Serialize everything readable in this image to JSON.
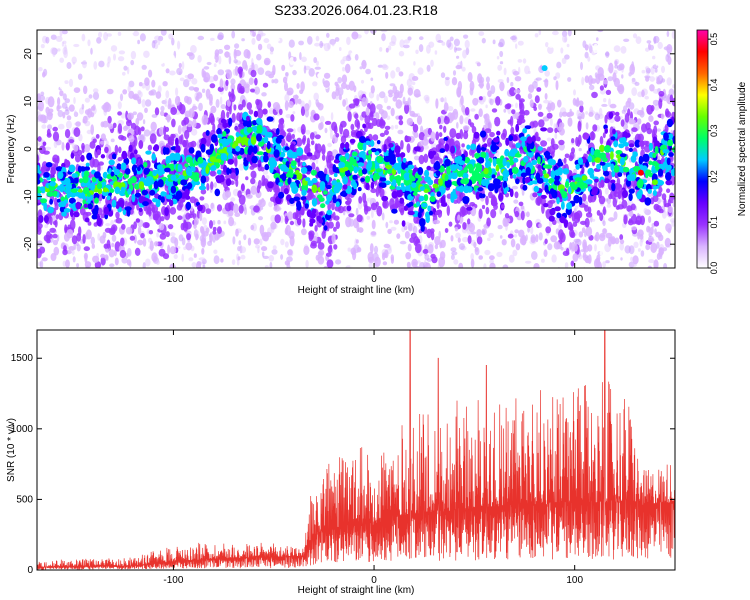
{
  "figure_title": "S233.2026.064.01.23.R18",
  "colors": {
    "snr_line": "#e8322c",
    "axis": "#000000",
    "background": "#ffffff"
  },
  "chart_data": [
    {
      "type": "heatmap",
      "title": "S233.2026.064.01.23.R18",
      "xlabel": "Height of straight line (km)",
      "ylabel": "Frequency (Hz)",
      "xlim": [
        -168,
        150
      ],
      "ylim": [
        -25,
        25
      ],
      "xticks": [
        -100,
        0,
        100
      ],
      "yticks": [
        -20,
        -10,
        0,
        10,
        20
      ],
      "grid": false,
      "colorbar": {
        "label": "Normalized spectral amplitude",
        "range": [
          0.0,
          0.52
        ],
        "ticks": [
          0.0,
          0.1,
          0.2,
          0.3,
          0.4,
          0.5
        ],
        "colormap": [
          "#ffffff",
          "#d9b3ff",
          "#9933ff",
          "#6600ff",
          "#0000ff",
          "#00ccff",
          "#00ff66",
          "#66ff00",
          "#ffff00",
          "#ff6600",
          "#ff0000",
          "#ff00aa"
        ]
      },
      "ridge": {
        "x": [
          -165,
          -140,
          -120,
          -100,
          -85,
          -70,
          -60,
          -50,
          -40,
          -30,
          -22,
          -15,
          -5,
          5,
          15,
          25,
          35,
          45,
          55,
          65,
          75,
          85,
          95,
          105,
          115,
          125,
          135,
          148
        ],
        "center_hz": [
          -8,
          -9,
          -7,
          -6,
          -4,
          1,
          3,
          -2,
          -5,
          -8,
          -11,
          -4,
          -3,
          -4,
          -6,
          -10,
          -6,
          -5,
          -4,
          -4,
          -1,
          -5,
          -10,
          -6,
          0,
          -3,
          -6,
          0
        ]
      }
    },
    {
      "type": "line",
      "title": "",
      "xlabel": "Height of straight line (km)",
      "ylabel": "SNR (10 * v/v)",
      "xlim": [
        -168,
        150
      ],
      "ylim": [
        0,
        1700
      ],
      "xticks": [
        -100,
        0,
        100
      ],
      "yticks": [
        0,
        500,
        1000,
        1500
      ],
      "grid": false,
      "envelope": {
        "x": [
          -168,
          -120,
          -100,
          -80,
          -50,
          -35,
          -30,
          -20,
          0,
          10,
          20,
          40,
          60,
          80,
          100,
          120,
          128,
          133,
          150
        ],
        "base": [
          20,
          30,
          60,
          80,
          90,
          100,
          250,
          300,
          320,
          380,
          400,
          420,
          450,
          460,
          480,
          480,
          500,
          460,
          480
        ],
        "peak": [
          70,
          90,
          180,
          200,
          190,
          160,
          700,
          800,
          900,
          1000,
          1100,
          1200,
          1250,
          1300,
          1300,
          1350,
          1200,
          700,
          800
        ]
      },
      "spikes": [
        {
          "x": 18,
          "y": 1700
        },
        {
          "x": 115,
          "y": 1700
        },
        {
          "x": 32,
          "y": 1500
        },
        {
          "x": 56,
          "y": 1450
        }
      ]
    }
  ]
}
